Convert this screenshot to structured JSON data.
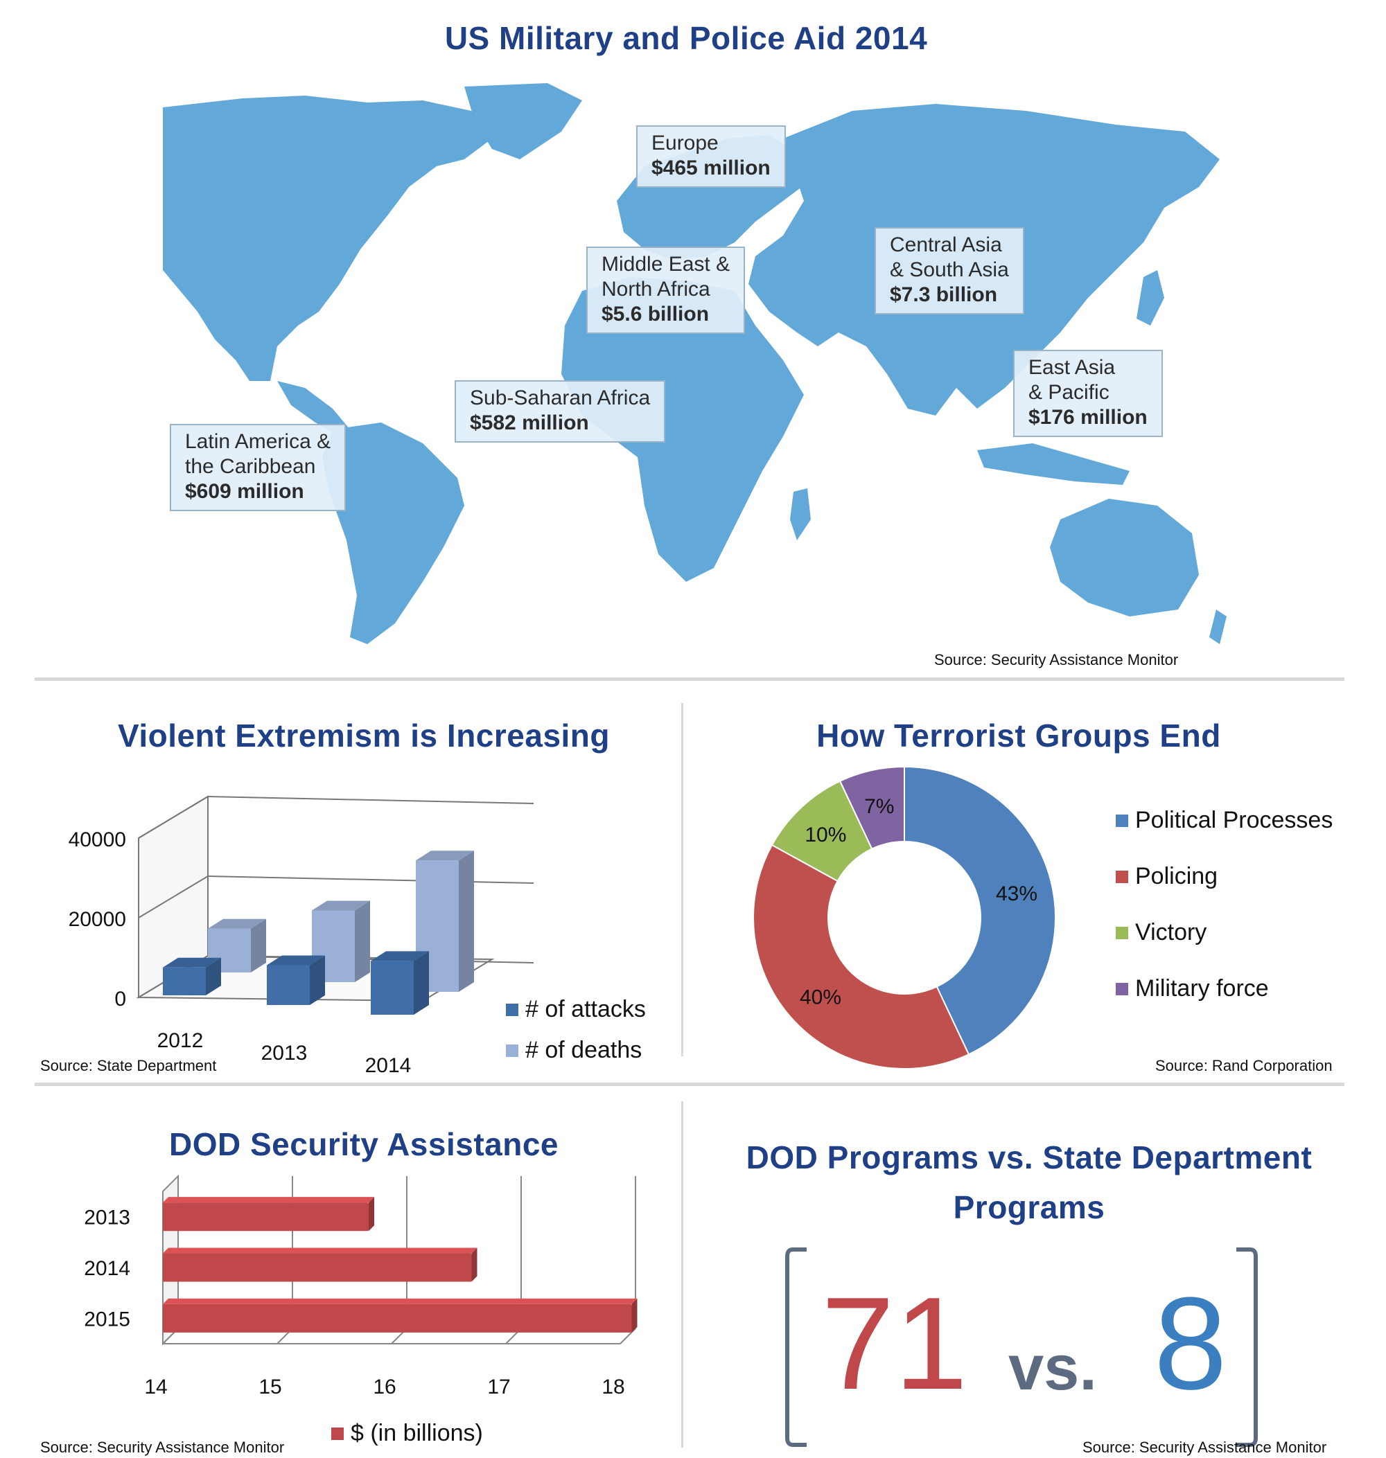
{
  "map": {
    "title": "US Military and Police Aid 2014",
    "source": "Source: Security Assistance Monitor",
    "colors": {
      "land": "#62a8d9",
      "label_bg": "#e3eef8"
    },
    "regions": [
      {
        "name_lines": [
          "Europe"
        ],
        "amount": "$465 million"
      },
      {
        "name_lines": [
          "Middle East &",
          "North Africa"
        ],
        "amount": "$5.6 billion"
      },
      {
        "name_lines": [
          "Central Asia",
          "& South Asia"
        ],
        "amount": "$7.3 billion"
      },
      {
        "name_lines": [
          "East Asia",
          "& Pacific"
        ],
        "amount": "$176 million"
      },
      {
        "name_lines": [
          "Sub-Saharan Africa"
        ],
        "amount": "$582 million"
      },
      {
        "name_lines": [
          "Latin America &",
          "the Caribbean"
        ],
        "amount": "$609 million"
      }
    ]
  },
  "extremism": {
    "title": "Violent Extremism is Increasing",
    "source": "Source: State Department"
  },
  "terror": {
    "title": "How Terrorist Groups End",
    "source": "Source: Rand Corporation"
  },
  "dod": {
    "title": "DOD Security Assistance",
    "source": "Source: Security Assistance Monitor"
  },
  "programs": {
    "title_line1": "DOD Programs vs. State Department",
    "title_line2": "Programs",
    "dod_count": "71",
    "vs": "vs.",
    "state_count": "8",
    "source": "Source: Security Assistance Monitor",
    "colors": {
      "dod": "#c0484a",
      "vs": "#5d6b80",
      "state": "#3c7fc1"
    }
  },
  "chart_data": [
    {
      "type": "bar",
      "title": "Violent Extremism is Increasing",
      "categories": [
        "2012",
        "2013",
        "2014"
      ],
      "series": [
        {
          "name": "# of attacks",
          "values": [
            7000,
            10000,
            13500
          ],
          "color": "#3f6ea8"
        },
        {
          "name": "# of deaths",
          "values": [
            11000,
            18000,
            33000
          ],
          "color": "#9bb0d6"
        }
      ],
      "ylim": [
        0,
        40000
      ],
      "yticks": [
        "40000",
        "20000",
        "0"
      ],
      "legend": "bottom-right",
      "grid": true
    },
    {
      "type": "pie",
      "title": "How Terrorist Groups End",
      "labels": [
        "Political Processes",
        "Policing",
        "Victory",
        "Military force"
      ],
      "values": [
        43,
        40,
        10,
        7
      ],
      "value_labels": [
        "43%",
        "40%",
        "10%",
        "7%"
      ],
      "colors": [
        "#4f81bd",
        "#c0504d",
        "#9bbb59",
        "#8064a2"
      ],
      "legend": "right"
    },
    {
      "type": "bar",
      "orientation": "horizontal",
      "title": "DOD Security Assistance",
      "categories": [
        "2013",
        "2014",
        "2015"
      ],
      "series": [
        {
          "name": "$ (in billions)",
          "values": [
            15.8,
            16.7,
            18.1
          ],
          "color": "#c0484a"
        }
      ],
      "xlim": [
        14,
        18
      ],
      "xticks": [
        "14",
        "15",
        "16",
        "17",
        "18"
      ],
      "legend": "bottom",
      "grid": true
    }
  ]
}
